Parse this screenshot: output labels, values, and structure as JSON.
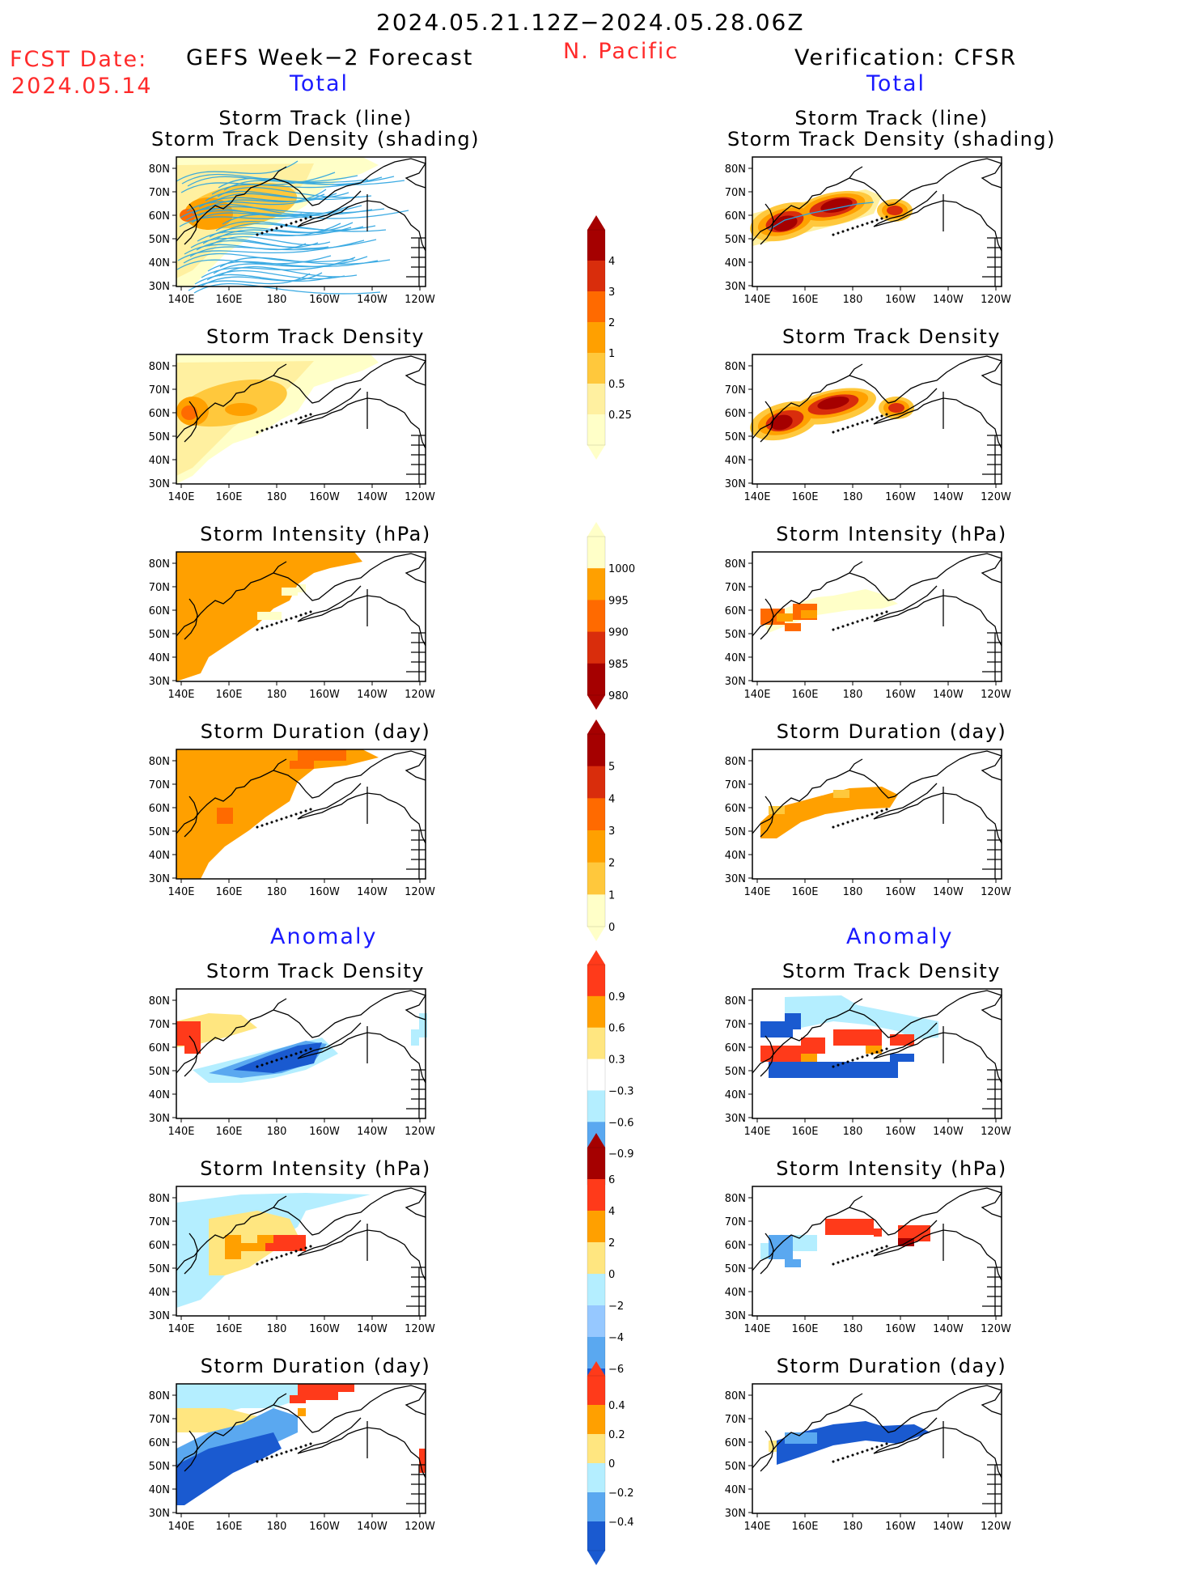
{
  "header": {
    "date_range": "2024.05.21.12Z−2024.05.28.06Z",
    "region": "N. Pacific",
    "fcst_label": "FCST Date:",
    "fcst_date": "2024.05.14",
    "left_title": "GEFS Week−2 Forecast",
    "right_title": "Verification: CFSR",
    "total_left": "Total",
    "total_right": "Total",
    "anomaly_left": "Anomaly",
    "anomaly_right": "Anomaly"
  },
  "panel_titles": {
    "track_line": "Storm Track (line)",
    "track_shading": "Storm Track Density (shading)",
    "density": "Storm Track Density",
    "intensity": "Storm Intensity (hPa)",
    "duration": "Storm Duration (day)"
  },
  "axes": {
    "lon_ticks": [
      "140E",
      "160E",
      "180",
      "160W",
      "140W",
      "120W"
    ],
    "lat_ticks": [
      "80N",
      "70N",
      "60N",
      "50N",
      "40N",
      "30N"
    ]
  },
  "colorbars": {
    "density_total": {
      "labels": [
        "4",
        "3",
        "2",
        "1",
        "0.5",
        "0.25"
      ],
      "colors": [
        "#a50000",
        "#d92d0c",
        "#ff6a00",
        "#ffa000",
        "#ffc83c",
        "#fff0a0",
        "#ffffc8"
      ]
    },
    "intensity_total": {
      "labels": [
        "1000",
        "995",
        "990",
        "985",
        "980"
      ],
      "colors": [
        "#ffffc8",
        "#ffa000",
        "#ff6a00",
        "#d92d0c",
        "#a50000"
      ]
    },
    "duration_total": {
      "labels": [
        "5",
        "4",
        "3",
        "2",
        "1",
        "0"
      ],
      "colors": [
        "#a50000",
        "#d92d0c",
        "#ff6a00",
        "#ffa000",
        "#ffc83c",
        "#ffffc8"
      ]
    },
    "density_anom": {
      "labels": [
        "0.9",
        "0.6",
        "0.3",
        "−0.3",
        "−0.6",
        "−0.9"
      ],
      "colors": [
        "#ff3a1a",
        "#ffa000",
        "#ffe680",
        "#ffffff",
        "#b4eeff",
        "#5aa8f0",
        "#1a5ad0"
      ]
    },
    "intensity_anom": {
      "labels": [
        "6",
        "4",
        "2",
        "0",
        "−2",
        "−4",
        "−6"
      ],
      "colors": [
        "#a50000",
        "#ff3a1a",
        "#ffa000",
        "#ffe680",
        "#b4eeff",
        "#96c8ff",
        "#5aa8f0",
        "#1a5ad0"
      ]
    },
    "duration_anom": {
      "labels": [
        "0.4",
        "0.2",
        "0",
        "−0.2",
        "−0.4"
      ],
      "colors": [
        "#ff3a1a",
        "#ffa000",
        "#ffe680",
        "#b4eeff",
        "#5aa8f0",
        "#1a5ad0"
      ]
    }
  }
}
